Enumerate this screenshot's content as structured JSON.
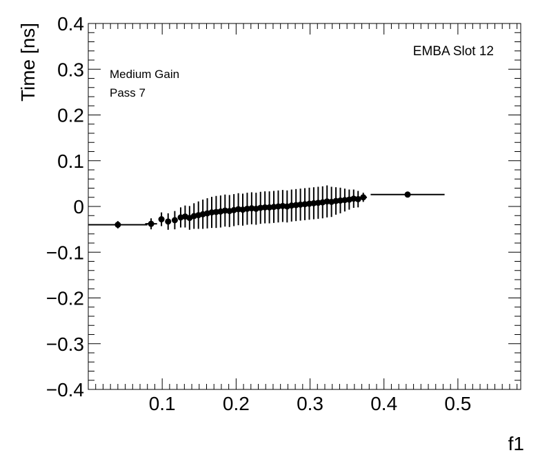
{
  "chart_data": {
    "type": "scatter",
    "title": "",
    "xlabel": "f1",
    "ylabel": "Time [ns]",
    "xlim": [
      0.0,
      0.585
    ],
    "ylim": [
      -0.4,
      0.4
    ],
    "x_ticks": [
      0.1,
      0.2,
      0.3,
      0.4,
      0.5
    ],
    "x_tick_labels": [
      "0.1",
      "0.2",
      "0.3",
      "0.4",
      "0.5"
    ],
    "y_ticks": [
      -0.4,
      -0.3,
      -0.2,
      -0.1,
      0,
      0.1,
      0.2,
      0.3,
      0.4
    ],
    "y_tick_labels": [
      "−0.4",
      "−0.3",
      "−0.2",
      "−0.1",
      "0",
      "0.1",
      "0.2",
      "0.3",
      "0.4"
    ],
    "grid": false,
    "marker_color": "#000000",
    "annotations": {
      "top_right": "EMBA Slot 12",
      "gain": "Medium Gain",
      "pass": "Pass 7"
    },
    "series": [
      {
        "points": [
          {
            "x": 0.04,
            "y": -0.04,
            "xerr": 0.04,
            "yerr": 0.008
          },
          {
            "x": 0.085,
            "y": -0.038,
            "xerr": 0.008,
            "yerr": 0.012
          },
          {
            "x": 0.099,
            "y": -0.028,
            "xerr": 0.004,
            "yerr": 0.015
          },
          {
            "x": 0.108,
            "y": -0.033,
            "xerr": 0.004,
            "yerr": 0.018
          },
          {
            "x": 0.117,
            "y": -0.03,
            "xerr": 0.004,
            "yerr": 0.02
          },
          {
            "x": 0.125,
            "y": -0.024,
            "xerr": 0.003,
            "yerr": 0.022
          },
          {
            "x": 0.131,
            "y": -0.022,
            "xerr": 0.003,
            "yerr": 0.024
          },
          {
            "x": 0.137,
            "y": -0.025,
            "xerr": 0.003,
            "yerr": 0.026
          },
          {
            "x": 0.143,
            "y": -0.021,
            "xerr": 0.003,
            "yerr": 0.028
          },
          {
            "x": 0.149,
            "y": -0.019,
            "xerr": 0.003,
            "yerr": 0.03
          },
          {
            "x": 0.155,
            "y": -0.017,
            "xerr": 0.003,
            "yerr": 0.032
          },
          {
            "x": 0.161,
            "y": -0.015,
            "xerr": 0.003,
            "yerr": 0.033
          },
          {
            "x": 0.167,
            "y": -0.013,
            "xerr": 0.003,
            "yerr": 0.034
          },
          {
            "x": 0.173,
            "y": -0.012,
            "xerr": 0.003,
            "yerr": 0.035
          },
          {
            "x": 0.179,
            "y": -0.011,
            "xerr": 0.003,
            "yerr": 0.035
          },
          {
            "x": 0.185,
            "y": -0.009,
            "xerr": 0.003,
            "yerr": 0.035
          },
          {
            "x": 0.191,
            "y": -0.01,
            "xerr": 0.003,
            "yerr": 0.035
          },
          {
            "x": 0.197,
            "y": -0.008,
            "xerr": 0.003,
            "yerr": 0.035
          },
          {
            "x": 0.203,
            "y": -0.006,
            "xerr": 0.003,
            "yerr": 0.035
          },
          {
            "x": 0.209,
            "y": -0.007,
            "xerr": 0.003,
            "yerr": 0.035
          },
          {
            "x": 0.215,
            "y": -0.005,
            "xerr": 0.003,
            "yerr": 0.035
          },
          {
            "x": 0.221,
            "y": -0.004,
            "xerr": 0.003,
            "yerr": 0.035
          },
          {
            "x": 0.227,
            "y": -0.005,
            "xerr": 0.003,
            "yerr": 0.035
          },
          {
            "x": 0.233,
            "y": -0.003,
            "xerr": 0.003,
            "yerr": 0.035
          },
          {
            "x": 0.239,
            "y": -0.002,
            "xerr": 0.003,
            "yerr": 0.035
          },
          {
            "x": 0.245,
            "y": -0.002,
            "xerr": 0.003,
            "yerr": 0.035
          },
          {
            "x": 0.251,
            "y": -0.001,
            "xerr": 0.003,
            "yerr": 0.035
          },
          {
            "x": 0.257,
            "y": 0.0,
            "xerr": 0.003,
            "yerr": 0.035
          },
          {
            "x": 0.263,
            "y": 0.001,
            "xerr": 0.003,
            "yerr": 0.035
          },
          {
            "x": 0.269,
            "y": 0.0,
            "xerr": 0.003,
            "yerr": 0.035
          },
          {
            "x": 0.275,
            "y": 0.002,
            "xerr": 0.003,
            "yerr": 0.035
          },
          {
            "x": 0.281,
            "y": 0.003,
            "xerr": 0.003,
            "yerr": 0.035
          },
          {
            "x": 0.287,
            "y": 0.004,
            "xerr": 0.003,
            "yerr": 0.035
          },
          {
            "x": 0.293,
            "y": 0.005,
            "xerr": 0.003,
            "yerr": 0.035
          },
          {
            "x": 0.299,
            "y": 0.006,
            "xerr": 0.003,
            "yerr": 0.035
          },
          {
            "x": 0.305,
            "y": 0.007,
            "xerr": 0.003,
            "yerr": 0.035
          },
          {
            "x": 0.311,
            "y": 0.008,
            "xerr": 0.003,
            "yerr": 0.035
          },
          {
            "x": 0.317,
            "y": 0.009,
            "xerr": 0.003,
            "yerr": 0.035
          },
          {
            "x": 0.323,
            "y": 0.011,
            "xerr": 0.003,
            "yerr": 0.035
          },
          {
            "x": 0.329,
            "y": 0.01,
            "xerr": 0.003,
            "yerr": 0.033
          },
          {
            "x": 0.335,
            "y": 0.012,
            "xerr": 0.003,
            "yerr": 0.03
          },
          {
            "x": 0.341,
            "y": 0.013,
            "xerr": 0.003,
            "yerr": 0.028
          },
          {
            "x": 0.347,
            "y": 0.014,
            "xerr": 0.003,
            "yerr": 0.025
          },
          {
            "x": 0.353,
            "y": 0.015,
            "xerr": 0.003,
            "yerr": 0.022
          },
          {
            "x": 0.359,
            "y": 0.017,
            "xerr": 0.003,
            "yerr": 0.02
          },
          {
            "x": 0.365,
            "y": 0.016,
            "xerr": 0.003,
            "yerr": 0.018
          },
          {
            "x": 0.372,
            "y": 0.02,
            "xerr": 0.005,
            "yerr": 0.01
          },
          {
            "x": 0.432,
            "y": 0.026,
            "xerr": 0.05,
            "yerr": 0.006
          }
        ]
      }
    ]
  }
}
